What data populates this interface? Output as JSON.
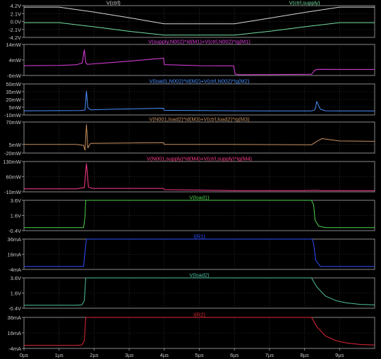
{
  "chart_data": {
    "type": "line",
    "x_unit": "µs",
    "x_ticks": [
      "0µs",
      "1µs",
      "2µs",
      "3µs",
      "4µs",
      "5µs",
      "6µs",
      "7µs",
      "8µs",
      "9µs"
    ],
    "xlim": [
      0,
      10
    ],
    "grid": true,
    "panels": [
      {
        "ylim": [
          -4.2,
          4.2
        ],
        "y_ticks": [
          "4.2V",
          "2.1V",
          "0.0V",
          "-2.1V",
          "-4.2V"
        ],
        "y_tick_values": [
          4.2,
          2.1,
          0.0,
          -2.1,
          -4.2
        ],
        "series": [
          {
            "name": "V(ctrl)",
            "color": "#d8d8d8",
            "x": [
              0,
              1,
              2,
              3,
              4,
              5,
              6,
              7,
              8,
              9,
              10
            ],
            "y": [
              3.8,
              3.8,
              2.5,
              1.0,
              -0.6,
              -0.6,
              -0.6,
              0.9,
              2.4,
              3.8,
              3.8
            ]
          },
          {
            "name": "V(ctrl,supply)",
            "color": "#74e0a0",
            "x": [
              0,
              1,
              2,
              3,
              4,
              5,
              6,
              7,
              8,
              9,
              10
            ],
            "y": [
              -0.3,
              -0.3,
              -1.4,
              -2.6,
              -3.6,
              -3.6,
              -3.6,
              -2.6,
              -1.4,
              -0.3,
              -0.3
            ]
          }
        ]
      },
      {
        "ylim": [
          -6,
          14
        ],
        "y_ticks": [
          "14mW",
          "4mW",
          "-6mW"
        ],
        "y_tick_values": [
          14,
          4,
          -6
        ],
        "series": [
          {
            "name": "V(supply,N002)*Id(M1)+V(ctrl,N002)*Ig(M1)",
            "color": "#e040e0",
            "x": [
              0,
              1.0,
              1.5,
              1.66,
              1.72,
              1.76,
              1.8,
              2.0,
              3.0,
              3.98,
              4.0,
              5.0,
              5.98,
              6.02,
              6.1,
              7.0,
              8.2,
              8.3,
              8.4,
              9.0,
              10
            ],
            "y": [
              0.3,
              0.5,
              0.9,
              2.0,
              10.5,
              2.5,
              1.2,
              1.5,
              3.2,
              5.2,
              1.0,
              0.3,
              0.2,
              -5.0,
              -5.5,
              -5.4,
              -5.2,
              -2.5,
              -2.0,
              -2.1,
              -2.1
            ]
          }
        ]
      },
      {
        "ylim": [
          -10,
          50
        ],
        "y_ticks": [
          "50mW",
          "35mW",
          "20mW",
          "5mW",
          "-10mW"
        ],
        "y_tick_values": [
          50,
          35,
          20,
          5,
          -10
        ],
        "series": [
          {
            "name": "V(load1,N002)*Id(M2)+V(ctrl,N002)*Ig(M2)",
            "color": "#4a90ff",
            "x": [
              0,
              1.6,
              1.74,
              1.78,
              1.82,
              1.9,
              2.5,
              3.98,
              4.0,
              5.0,
              6.0,
              7.0,
              8.2,
              8.3,
              8.35,
              8.45,
              8.6,
              9.0,
              10
            ],
            "y": [
              -2,
              -1.5,
              -0.5,
              36,
              4,
              0,
              1,
              3,
              -1,
              -1.5,
              -2,
              -2.2,
              -2.2,
              0,
              16,
              1,
              -2,
              -2.2,
              -2.2
            ]
          }
        ]
      },
      {
        "ylim": [
          -20,
          70
        ],
        "y_ticks": [
          "70mW",
          "5mW",
          "-20mW"
        ],
        "y_tick_values": [
          70,
          5,
          -20
        ],
        "series": [
          {
            "name": "V(N001,load2)*Id(M3)+V(ctrl,load2)*Ig(M3)",
            "color": "#c89060",
            "x": [
              0,
              1.5,
              1.7,
              1.74,
              1.78,
              1.82,
              1.9,
              3.98,
              4.0,
              6.0,
              8.0,
              8.2,
              8.35,
              8.5,
              9.0,
              10
            ],
            "y": [
              5,
              5,
              2,
              -12,
              62,
              -5,
              8,
              10,
              5,
              5,
              4,
              4,
              14,
              22,
              15,
              14
            ]
          }
        ]
      },
      {
        "ylim": [
          -10,
          130
        ],
        "y_ticks": [
          "130mW",
          "60mW",
          "-10mW"
        ],
        "y_tick_values": [
          130,
          60,
          -10
        ],
        "series": [
          {
            "name": "V(N001,supply)*Id(M4)+V(ctrl,supply)*Ig(M4)",
            "color": "#ff3c8c",
            "x": [
              0,
              1.5,
              1.72,
              1.78,
              1.84,
              1.95,
              3.98,
              4.0,
              6.0,
              8.0,
              8.3,
              8.5,
              10
            ],
            "y": [
              4,
              4,
              10,
              120,
              12,
              6,
              6,
              0,
              -4,
              -4,
              -3,
              -4,
              -4
            ]
          }
        ]
      },
      {
        "ylim": [
          -0.4,
          3.6
        ],
        "y_ticks": [
          "3.6V",
          "1.6V",
          "-0.4V"
        ],
        "y_tick_values": [
          3.6,
          1.6,
          -0.4
        ],
        "series": [
          {
            "name": "V(load1)",
            "color": "#4cd24c",
            "x": [
              0,
              1.7,
              1.74,
              1.76,
              1.8,
              2.0,
              8.2,
              8.26,
              8.3,
              8.4,
              8.6,
              10
            ],
            "y": [
              0,
              0,
              1.5,
              3.6,
              3.6,
              3.6,
              3.6,
              3.0,
              1.0,
              0.2,
              0,
              0
            ]
          }
        ]
      },
      {
        "ylim": [
          -4,
          36
        ],
        "y_ticks": [
          "36mA",
          "16mA",
          "-4mA"
        ],
        "y_tick_values": [
          36,
          16,
          -4
        ],
        "series": [
          {
            "name": "I(R1)",
            "color": "#3050ff",
            "x": [
              0,
              1.7,
              1.74,
              1.78,
              2.0,
              8.22,
              8.26,
              8.32,
              8.45,
              10
            ],
            "y": [
              0,
              0,
              20,
              36,
              36,
              36,
              30,
              8,
              0,
              0
            ]
          }
        ]
      },
      {
        "ylim": [
          -0.4,
          3.6
        ],
        "y_ticks": [
          "3.6V",
          "1.6V",
          "-0.4V"
        ],
        "y_tick_values": [
          3.6,
          1.6,
          -0.4
        ],
        "series": [
          {
            "name": "V(load2)",
            "color": "#50c0a0",
            "x": [
              0,
              1.5,
              1.65,
              1.72,
              1.76,
              1.8,
              2.0,
              8.2,
              8.35,
              8.6,
              8.9,
              9.2,
              9.6,
              10
            ],
            "y": [
              0,
              0,
              0.05,
              0.6,
              3.6,
              3.6,
              3.6,
              3.6,
              2.4,
              1.2,
              0.6,
              0.3,
              0.1,
              0.05
            ]
          }
        ]
      },
      {
        "ylim": [
          -4,
          36
        ],
        "y_ticks": [
          "36mA",
          "16mA",
          "-4mA"
        ],
        "y_tick_values": [
          36,
          16,
          -4
        ],
        "series": [
          {
            "name": "I(R2)",
            "color": "#e02838",
            "x": [
              0,
              1.5,
              1.65,
              1.72,
              1.76,
              1.8,
              2.0,
              8.2,
              8.35,
              8.6,
              8.9,
              9.2,
              9.6,
              10
            ],
            "y": [
              0,
              0,
              0.5,
              6,
              36,
              36,
              36,
              36,
              24,
              12,
              6,
              3,
              1,
              0.5
            ]
          }
        ]
      }
    ]
  }
}
